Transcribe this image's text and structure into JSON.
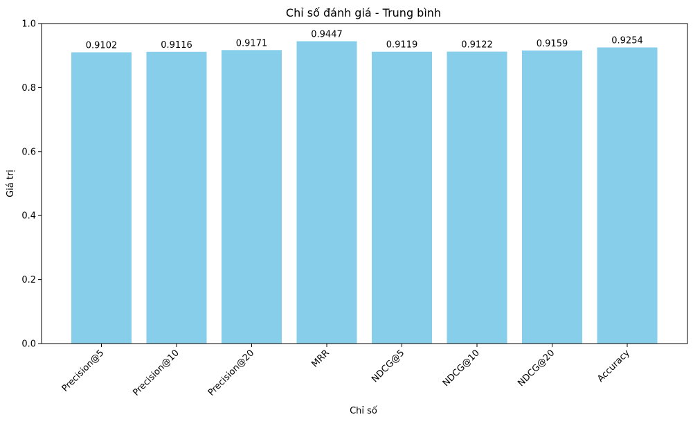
{
  "chart_data": {
    "type": "bar",
    "title": "Chỉ số đánh giá - Trung bình",
    "xlabel": "Chỉ số",
    "ylabel": "Giá trị",
    "categories": [
      "Precision@5",
      "Precision@10",
      "Precision@20",
      "MRR",
      "NDCG@5",
      "NDCG@10",
      "NDCG@20",
      "Accuracy"
    ],
    "values": [
      0.9102,
      0.9116,
      0.9171,
      0.9447,
      0.9119,
      0.9122,
      0.9159,
      0.9254
    ],
    "value_labels": [
      "0.9102",
      "0.9116",
      "0.9171",
      "0.9447",
      "0.9119",
      "0.9122",
      "0.9159",
      "0.9254"
    ],
    "ylim": [
      0,
      1.0
    ],
    "yticks": [
      "0.0",
      "0.2",
      "0.4",
      "0.6",
      "0.8",
      "1.0"
    ],
    "grid": false,
    "bar_color": "#87ceeb",
    "x_tick_rotation_deg": 45
  }
}
